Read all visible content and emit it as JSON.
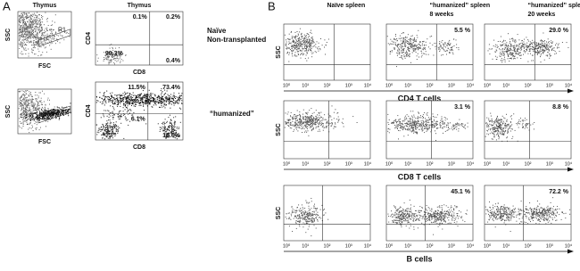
{
  "panel_a": {
    "label": "A",
    "rows": [
      {
        "scatter": {
          "title": "Thymus",
          "y_label": "SSC",
          "x_label": "FSC",
          "gate": "R1"
        },
        "quadrant": {
          "title": "Thymus",
          "y_label": "CD4",
          "x_label": "CD8",
          "percentages": [
            "0.1%",
            "0.2%",
            "99.3%",
            "0.4%"
          ]
        },
        "condition": [
          "Naïve",
          "Non-transplanted"
        ]
      },
      {
        "scatter": {
          "y_label": "SSC",
          "x_label": "FSC"
        },
        "quadrant": {
          "y_label": "CD4",
          "x_label": "CD8",
          "percentages": [
            "11.5%",
            "73.4%",
            "6.1%",
            "10.0%"
          ]
        },
        "condition": [
          "“humanized”"
        ]
      }
    ]
  },
  "panel_b": {
    "label": "B",
    "columns": [
      [
        "Naïve spleen"
      ],
      [
        "“humanized” spleen",
        "8 weeks"
      ],
      [
        "“humanized” spleen",
        "20 weeks"
      ]
    ],
    "y_label": "SSC",
    "axis_ticks": [
      "10⁰",
      "10¹",
      "10²",
      "10³",
      "10⁴"
    ],
    "rows": [
      {
        "name": "CD4 T cells",
        "percentages": [
          "5.5 %",
          "29.0 %"
        ]
      },
      {
        "name": "CD8 T cells",
        "percentages": [
          "3.1 %",
          "8.8 %"
        ]
      },
      {
        "name": "B cells",
        "percentages": [
          "45.1 %",
          "72.2 %"
        ]
      }
    ]
  }
}
